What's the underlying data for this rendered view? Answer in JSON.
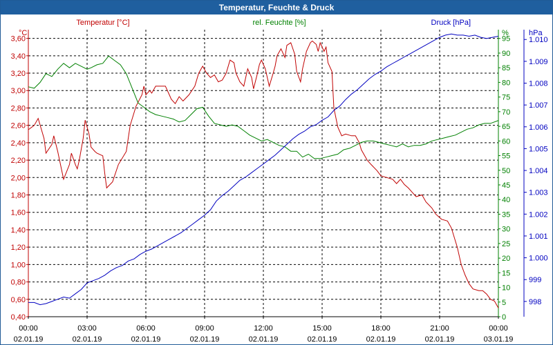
{
  "window": {
    "title": "Temperatur, Feuchte & Druck"
  },
  "colors": {
    "temperature": "#c00000",
    "humidity": "#008000",
    "pressure": "#0000c0",
    "axis": "#000000",
    "grid": "#000000"
  },
  "chart_data": {
    "type": "line",
    "title": "Temperatur, Feuchte & Druck",
    "x_ticks": [
      {
        "time": "00:00",
        "date": "02.01.19"
      },
      {
        "time": "03:00",
        "date": "02.01.19"
      },
      {
        "time": "06:00",
        "date": "02.01.19"
      },
      {
        "time": "09:00",
        "date": "02.01.19"
      },
      {
        "time": "12:00",
        "date": "02.01.19"
      },
      {
        "time": "15:00",
        "date": "02.01.19"
      },
      {
        "time": "18:00",
        "date": "02.01.19"
      },
      {
        "time": "21:00",
        "date": "02.01.19"
      },
      {
        "time": "00:00",
        "date": "03.01.19"
      }
    ],
    "xlim": [
      0,
      24
    ],
    "axes": {
      "temperature": {
        "label": "Temperatur [°C]",
        "unit": "°C",
        "ylim": [
          0.4,
          3.7
        ],
        "ticks": [
          "0,40",
          "0,60",
          "0,80",
          "1,00",
          "1,20",
          "1,40",
          "1,60",
          "1,80",
          "2,00",
          "2,20",
          "2,40",
          "2,60",
          "2,80",
          "3,00",
          "3,20",
          "3,40",
          "3,60"
        ]
      },
      "humidity": {
        "label": "rel. Feuchte [%]",
        "unit": "%",
        "ylim": [
          0,
          98
        ],
        "ticks": [
          "0",
          "5",
          "10",
          "15",
          "20",
          "25",
          "30",
          "35",
          "40",
          "45",
          "50",
          "55",
          "60",
          "65",
          "70",
          "75",
          "80",
          "85",
          "90",
          "95"
        ]
      },
      "pressure": {
        "label": "Druck [hPa]",
        "unit": "hPa",
        "ylim": [
          997.3,
          1010.45
        ],
        "ticks": [
          "998",
          "999",
          "1.000",
          "1.001",
          "1.002",
          "1.003",
          "1.004",
          "1.005",
          "1.006",
          "1.007",
          "1.008",
          "1.009",
          "1.010"
        ]
      }
    },
    "series": [
      {
        "name": "Temperatur",
        "axis": "temperature",
        "points": [
          [
            0,
            2.55
          ],
          [
            0.3,
            2.6
          ],
          [
            0.5,
            2.68
          ],
          [
            0.8,
            2.45
          ],
          [
            0.9,
            2.28
          ],
          [
            1.2,
            2.38
          ],
          [
            1.3,
            2.48
          ],
          [
            1.5,
            2.3
          ],
          [
            1.8,
            1.98
          ],
          [
            2.1,
            2.15
          ],
          [
            2.2,
            2.28
          ],
          [
            2.4,
            2.15
          ],
          [
            2.5,
            2.1
          ],
          [
            2.6,
            2.2
          ],
          [
            2.8,
            2.45
          ],
          [
            2.9,
            2.66
          ],
          [
            3.1,
            2.5
          ],
          [
            3.2,
            2.35
          ],
          [
            3.4,
            2.3
          ],
          [
            3.5,
            2.28
          ],
          [
            3.8,
            2.25
          ],
          [
            3.9,
            2.05
          ],
          [
            4.0,
            1.88
          ],
          [
            4.3,
            1.95
          ],
          [
            4.6,
            2.15
          ],
          [
            5.0,
            2.3
          ],
          [
            5.2,
            2.6
          ],
          [
            5.5,
            2.82
          ],
          [
            5.8,
            2.95
          ],
          [
            5.9,
            3.05
          ],
          [
            6.0,
            2.95
          ],
          [
            6.2,
            3.0
          ],
          [
            6.3,
            2.97
          ],
          [
            6.5,
            3.05
          ],
          [
            6.8,
            3.05
          ],
          [
            7.0,
            3.05
          ],
          [
            7.2,
            2.95
          ],
          [
            7.3,
            2.9
          ],
          [
            7.5,
            2.85
          ],
          [
            7.7,
            2.93
          ],
          [
            7.9,
            2.88
          ],
          [
            8.2,
            2.95
          ],
          [
            8.5,
            3.05
          ],
          [
            8.7,
            3.2
          ],
          [
            8.9,
            3.28
          ],
          [
            9.1,
            3.2
          ],
          [
            9.3,
            3.15
          ],
          [
            9.5,
            3.18
          ],
          [
            9.7,
            3.1
          ],
          [
            9.9,
            3.12
          ],
          [
            10.1,
            3.2
          ],
          [
            10.3,
            3.35
          ],
          [
            10.5,
            3.32
          ],
          [
            10.6,
            3.2
          ],
          [
            10.8,
            3.1
          ],
          [
            11.0,
            3.05
          ],
          [
            11.2,
            3.25
          ],
          [
            11.4,
            3.15
          ],
          [
            11.5,
            3.02
          ],
          [
            11.7,
            3.2
          ],
          [
            11.8,
            3.3
          ],
          [
            11.9,
            3.35
          ],
          [
            12.1,
            3.25
          ],
          [
            12.3,
            3.05
          ],
          [
            12.5,
            3.2
          ],
          [
            12.6,
            3.28
          ],
          [
            12.7,
            3.4
          ],
          [
            12.9,
            3.48
          ],
          [
            13.1,
            3.38
          ],
          [
            13.2,
            3.52
          ],
          [
            13.4,
            3.55
          ],
          [
            13.6,
            3.42
          ],
          [
            13.7,
            3.22
          ],
          [
            13.9,
            3.1
          ],
          [
            14.0,
            3.25
          ],
          [
            14.2,
            3.45
          ],
          [
            14.4,
            3.55
          ],
          [
            14.5,
            3.57
          ],
          [
            14.7,
            3.53
          ],
          [
            14.8,
            3.45
          ],
          [
            14.9,
            3.55
          ],
          [
            15.1,
            3.45
          ],
          [
            15.2,
            3.5
          ],
          [
            15.3,
            3.32
          ],
          [
            15.5,
            3.22
          ],
          [
            15.6,
            2.8
          ],
          [
            15.8,
            2.58
          ],
          [
            16.0,
            2.48
          ],
          [
            16.2,
            2.5
          ],
          [
            16.5,
            2.48
          ],
          [
            16.7,
            2.48
          ],
          [
            16.9,
            2.4
          ],
          [
            17.0,
            2.32
          ],
          [
            17.3,
            2.2
          ],
          [
            17.5,
            2.15
          ],
          [
            17.8,
            2.08
          ],
          [
            18.0,
            2.02
          ],
          [
            18.3,
            2.0
          ],
          [
            18.6,
            1.98
          ],
          [
            18.8,
            1.93
          ],
          [
            19.0,
            1.98
          ],
          [
            19.2,
            1.92
          ],
          [
            19.4,
            1.88
          ],
          [
            19.6,
            1.83
          ],
          [
            19.8,
            1.78
          ],
          [
            20.1,
            1.8
          ],
          [
            20.3,
            1.72
          ],
          [
            20.6,
            1.65
          ],
          [
            20.8,
            1.58
          ],
          [
            21.1,
            1.52
          ],
          [
            21.4,
            1.5
          ],
          [
            21.6,
            1.42
          ],
          [
            21.9,
            1.2
          ],
          [
            22.1,
            1.0
          ],
          [
            22.3,
            0.88
          ],
          [
            22.5,
            0.78
          ],
          [
            22.7,
            0.72
          ],
          [
            23.0,
            0.7
          ],
          [
            23.2,
            0.7
          ],
          [
            23.4,
            0.66
          ],
          [
            23.6,
            0.6
          ],
          [
            23.8,
            0.58
          ],
          [
            24.0,
            0.5
          ]
        ]
      },
      {
        "name": "rel. Feuchte",
        "axis": "humidity",
        "points": [
          [
            0,
            78.5
          ],
          [
            0.3,
            78
          ],
          [
            0.6,
            80
          ],
          [
            0.9,
            83
          ],
          [
            1.2,
            82
          ],
          [
            1.5,
            84.5
          ],
          [
            1.8,
            86.5
          ],
          [
            2.1,
            85
          ],
          [
            2.4,
            86.5
          ],
          [
            2.7,
            85.5
          ],
          [
            3.0,
            84.5
          ],
          [
            3.2,
            85
          ],
          [
            3.5,
            86
          ],
          [
            3.8,
            86.5
          ],
          [
            4.1,
            89
          ],
          [
            4.4,
            87.5
          ],
          [
            4.7,
            86
          ],
          [
            5.0,
            83
          ],
          [
            5.3,
            78
          ],
          [
            5.6,
            73
          ],
          [
            5.9,
            71.5
          ],
          [
            6.2,
            70
          ],
          [
            6.5,
            69
          ],
          [
            6.8,
            68.5
          ],
          [
            7.1,
            68
          ],
          [
            7.4,
            67.5
          ],
          [
            7.7,
            66.5
          ],
          [
            8.0,
            67
          ],
          [
            8.3,
            69
          ],
          [
            8.6,
            71
          ],
          [
            8.9,
            71.5
          ],
          [
            9.2,
            68.5
          ],
          [
            9.5,
            66
          ],
          [
            9.8,
            65.5
          ],
          [
            10.1,
            65
          ],
          [
            10.4,
            65.5
          ],
          [
            10.7,
            65
          ],
          [
            11.0,
            63.5
          ],
          [
            11.3,
            62
          ],
          [
            11.6,
            61
          ],
          [
            11.9,
            60
          ],
          [
            12.2,
            60.5
          ],
          [
            12.5,
            59.5
          ],
          [
            12.8,
            58.5
          ],
          [
            13.1,
            58
          ],
          [
            13.4,
            56.5
          ],
          [
            13.7,
            56.5
          ],
          [
            14.0,
            54.5
          ],
          [
            14.3,
            55.5
          ],
          [
            14.6,
            54
          ],
          [
            14.9,
            54
          ],
          [
            15.2,
            54.5
          ],
          [
            15.5,
            55
          ],
          [
            15.8,
            55.5
          ],
          [
            16.1,
            57
          ],
          [
            16.4,
            57.5
          ],
          [
            16.7,
            58.5
          ],
          [
            17.0,
            59.5
          ],
          [
            17.3,
            60
          ],
          [
            17.6,
            60
          ],
          [
            17.9,
            59.5
          ],
          [
            18.2,
            59
          ],
          [
            18.5,
            58.5
          ],
          [
            18.8,
            58
          ],
          [
            19.1,
            59
          ],
          [
            19.4,
            58
          ],
          [
            19.7,
            58.5
          ],
          [
            20.0,
            58.5
          ],
          [
            20.3,
            59
          ],
          [
            20.6,
            60
          ],
          [
            20.9,
            60.5
          ],
          [
            21.2,
            61
          ],
          [
            21.5,
            61.5
          ],
          [
            21.8,
            62
          ],
          [
            22.1,
            63
          ],
          [
            22.4,
            64
          ],
          [
            22.7,
            64.5
          ],
          [
            23.0,
            65.5
          ],
          [
            23.3,
            66
          ],
          [
            23.6,
            66
          ],
          [
            24.0,
            67
          ]
        ]
      },
      {
        "name": "Druck",
        "axis": "pressure",
        "points": [
          [
            0,
            997.95
          ],
          [
            0.3,
            997.95
          ],
          [
            0.6,
            997.85
          ],
          [
            0.9,
            997.9
          ],
          [
            1.2,
            998.0
          ],
          [
            1.5,
            998.1
          ],
          [
            1.8,
            998.2
          ],
          [
            2.1,
            998.15
          ],
          [
            2.4,
            998.35
          ],
          [
            2.7,
            998.55
          ],
          [
            3.0,
            998.85
          ],
          [
            3.3,
            998.95
          ],
          [
            3.6,
            999.05
          ],
          [
            3.9,
            999.2
          ],
          [
            4.2,
            999.4
          ],
          [
            4.5,
            999.55
          ],
          [
            4.8,
            999.65
          ],
          [
            5.1,
            999.85
          ],
          [
            5.4,
            999.95
          ],
          [
            5.7,
            1000.15
          ],
          [
            6.0,
            1000.3
          ],
          [
            6.3,
            1000.4
          ],
          [
            6.6,
            1000.55
          ],
          [
            6.9,
            1000.7
          ],
          [
            7.2,
            1000.85
          ],
          [
            7.5,
            1001.0
          ],
          [
            7.8,
            1001.15
          ],
          [
            8.1,
            1001.35
          ],
          [
            8.4,
            1001.55
          ],
          [
            8.7,
            1001.75
          ],
          [
            9.0,
            1001.95
          ],
          [
            9.3,
            1002.2
          ],
          [
            9.6,
            1002.6
          ],
          [
            9.9,
            1002.85
          ],
          [
            10.2,
            1003.05
          ],
          [
            10.5,
            1003.3
          ],
          [
            10.8,
            1003.55
          ],
          [
            11.1,
            1003.7
          ],
          [
            11.4,
            1003.9
          ],
          [
            11.7,
            1004.1
          ],
          [
            12.0,
            1004.3
          ],
          [
            12.3,
            1004.5
          ],
          [
            12.6,
            1004.7
          ],
          [
            12.9,
            1004.95
          ],
          [
            13.2,
            1005.2
          ],
          [
            13.5,
            1005.45
          ],
          [
            13.8,
            1005.65
          ],
          [
            14.1,
            1005.8
          ],
          [
            14.4,
            1006.0
          ],
          [
            14.7,
            1006.1
          ],
          [
            15.0,
            1006.3
          ],
          [
            15.3,
            1006.45
          ],
          [
            15.6,
            1006.75
          ],
          [
            15.9,
            1006.95
          ],
          [
            16.2,
            1007.25
          ],
          [
            16.5,
            1007.5
          ],
          [
            16.8,
            1007.7
          ],
          [
            17.1,
            1007.95
          ],
          [
            17.4,
            1008.2
          ],
          [
            17.7,
            1008.4
          ],
          [
            18.0,
            1008.55
          ],
          [
            18.3,
            1008.75
          ],
          [
            18.6,
            1008.9
          ],
          [
            18.9,
            1009.05
          ],
          [
            19.2,
            1009.2
          ],
          [
            19.5,
            1009.35
          ],
          [
            19.8,
            1009.5
          ],
          [
            20.1,
            1009.65
          ],
          [
            20.4,
            1009.8
          ],
          [
            20.7,
            1009.95
          ],
          [
            21.0,
            1010.1
          ],
          [
            21.3,
            1010.2
          ],
          [
            21.6,
            1010.25
          ],
          [
            21.9,
            1010.2
          ],
          [
            22.2,
            1010.2
          ],
          [
            22.5,
            1010.15
          ],
          [
            22.8,
            1010.2
          ],
          [
            23.1,
            1010.1
          ],
          [
            23.4,
            1010.05
          ],
          [
            23.7,
            1010.1
          ],
          [
            24.0,
            1010.15
          ]
        ]
      }
    ]
  }
}
